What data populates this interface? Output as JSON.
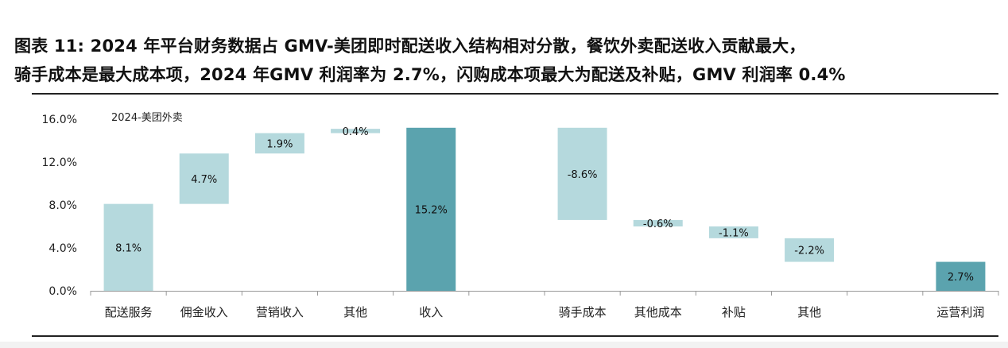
{
  "title": {
    "line1": "图表 11: 2024 年平台财务数据占 GMV-美团即时配送收入结构相对分散，餐饮外卖配送收入贡献最大，",
    "line2": "骑手成本是最大成本项，2024 年GMV 利润率为 2.7%，闪购成本项最大为配送及补贴，GMV 利润率 0.4%"
  },
  "chart_data": {
    "type": "bar",
    "subtype": "waterfall",
    "annotation": "2024-美团外卖",
    "categories": [
      "配送服务",
      "佣金收入",
      "营销收入",
      "其他",
      "收入",
      "",
      "骑手成本",
      "其他成本",
      "补贴",
      "其他",
      "",
      "运营利润"
    ],
    "bars": [
      {
        "category": "配送服务",
        "start": 0,
        "end": 8.1,
        "label": "8.1%",
        "kind": "increase"
      },
      {
        "category": "佣金收入",
        "start": 8.1,
        "end": 12.8,
        "label": "4.7%",
        "kind": "increase"
      },
      {
        "category": "营销收入",
        "start": 12.8,
        "end": 14.7,
        "label": "1.9%",
        "kind": "increase"
      },
      {
        "category": "其他",
        "start": 14.7,
        "end": 15.1,
        "label": "0.4%",
        "kind": "increase"
      },
      {
        "category": "收入",
        "start": 0,
        "end": 15.2,
        "label": "15.2%",
        "kind": "total"
      },
      {
        "category": "骑手成本",
        "start": 15.2,
        "end": 6.6,
        "label": "-8.6%",
        "kind": "decrease"
      },
      {
        "category": "其他成本",
        "start": 6.6,
        "end": 6.0,
        "label": "-0.6%",
        "kind": "decrease"
      },
      {
        "category": "补贴",
        "start": 6.0,
        "end": 4.9,
        "label": "-1.1%",
        "kind": "decrease"
      },
      {
        "category": "其他",
        "start": 4.9,
        "end": 2.7,
        "label": "-2.2%",
        "kind": "decrease"
      },
      {
        "category": "运营利润",
        "start": 0,
        "end": 2.7,
        "label": "2.7%",
        "kind": "total"
      }
    ],
    "ylim": [
      0,
      16
    ],
    "yticks": [
      "0.0%",
      "4.0%",
      "8.0%",
      "12.0%",
      "16.0%"
    ],
    "grid": false,
    "colors": {
      "increase": "#b5d9dd",
      "decrease": "#b5d9dd",
      "total": "#5ba3ae",
      "axis": "#999999"
    }
  }
}
